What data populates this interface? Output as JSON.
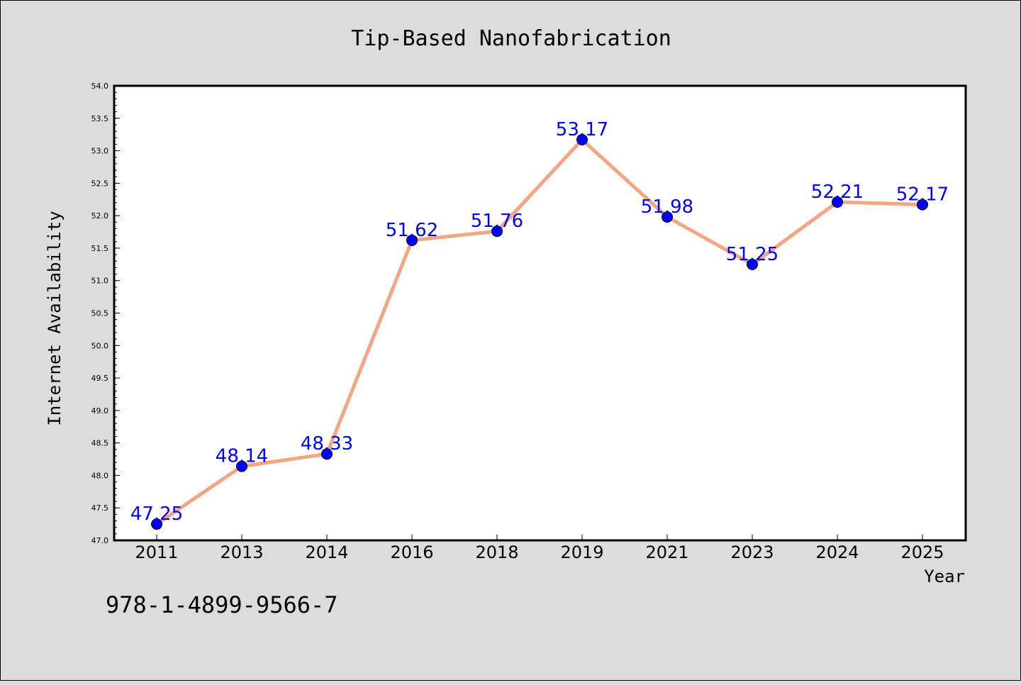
{
  "chart_data": {
    "type": "line",
    "title": "Tip-Based Nanofabrication",
    "xlabel": "Year",
    "ylabel": "Internet Availability",
    "categories": [
      "2011",
      "2013",
      "2014",
      "2016",
      "2018",
      "2019",
      "2021",
      "2023",
      "2024",
      "2025"
    ],
    "values": [
      47.25,
      48.14,
      48.33,
      51.62,
      51.76,
      53.17,
      51.98,
      51.25,
      52.21,
      52.17
    ],
    "data_labels": [
      "47.25",
      "48.14",
      "48.33",
      "51.62",
      "51.76",
      "53.17",
      "51.98",
      "51.25",
      "52.21",
      "52.17"
    ],
    "ylim": [
      47.0,
      54.0
    ],
    "yticks": [
      "47.0",
      "47.5",
      "48.0",
      "48.5",
      "49.0",
      "49.5",
      "50.0",
      "50.5",
      "51.0",
      "51.5",
      "52.0",
      "52.5",
      "53.0",
      "53.5",
      "54.0"
    ],
    "grid": false,
    "line_color": "#f4a582",
    "marker_color": "#0000ff",
    "label_color": "#0000ff"
  },
  "footer_text": "978-1-4899-9566-7"
}
